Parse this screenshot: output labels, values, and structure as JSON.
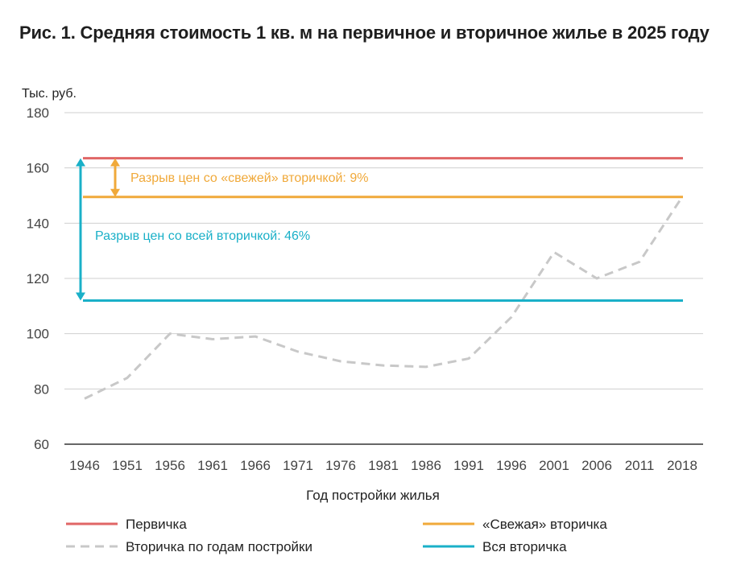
{
  "title": "Рис. 1. Средняя стоимость 1 кв. м на первичное и вторичное жилье в 2025 году",
  "chart_data": {
    "type": "line",
    "y_unit": "Тыс. руб.",
    "xlabel": "Год постройки жилья",
    "ylim": [
      60,
      180
    ],
    "yticks": [
      60,
      80,
      100,
      120,
      140,
      160,
      180
    ],
    "categories": [
      "1946",
      "1951",
      "1956",
      "1961",
      "1966",
      "1971",
      "1976",
      "1981",
      "1986",
      "1991",
      "1996",
      "2001",
      "2006",
      "2011",
      "2018"
    ],
    "grid": true,
    "legend_position": "bottom",
    "series": [
      {
        "name": "Первичка",
        "kind": "constant",
        "value": 163.5,
        "color": "#e06666",
        "dash": false
      },
      {
        "name": "«Свежая» вторичка",
        "kind": "constant",
        "value": 149.5,
        "color": "#f0a93a",
        "dash": false
      },
      {
        "name": "Вторичка по годам постройки",
        "kind": "line",
        "color": "#c8c8c8",
        "dash": true,
        "values": [
          76.5,
          84,
          100,
          98,
          99,
          93.5,
          90,
          88.5,
          88,
          91,
          106,
          129.5,
          120,
          126,
          149.5
        ]
      },
      {
        "name": "Вся вторичка",
        "kind": "constant",
        "value": 112,
        "color": "#1ab0c8",
        "dash": false
      }
    ],
    "annotations": [
      {
        "text": "Разрыв цен со «свежей» вторичкой: 9%",
        "from": 163.5,
        "to": 149.5,
        "color": "#f0a93a"
      },
      {
        "text": "Разрыв цен со всей вторичкой: 46%",
        "from": 163.5,
        "to": 112,
        "color": "#1ab0c8"
      }
    ]
  }
}
